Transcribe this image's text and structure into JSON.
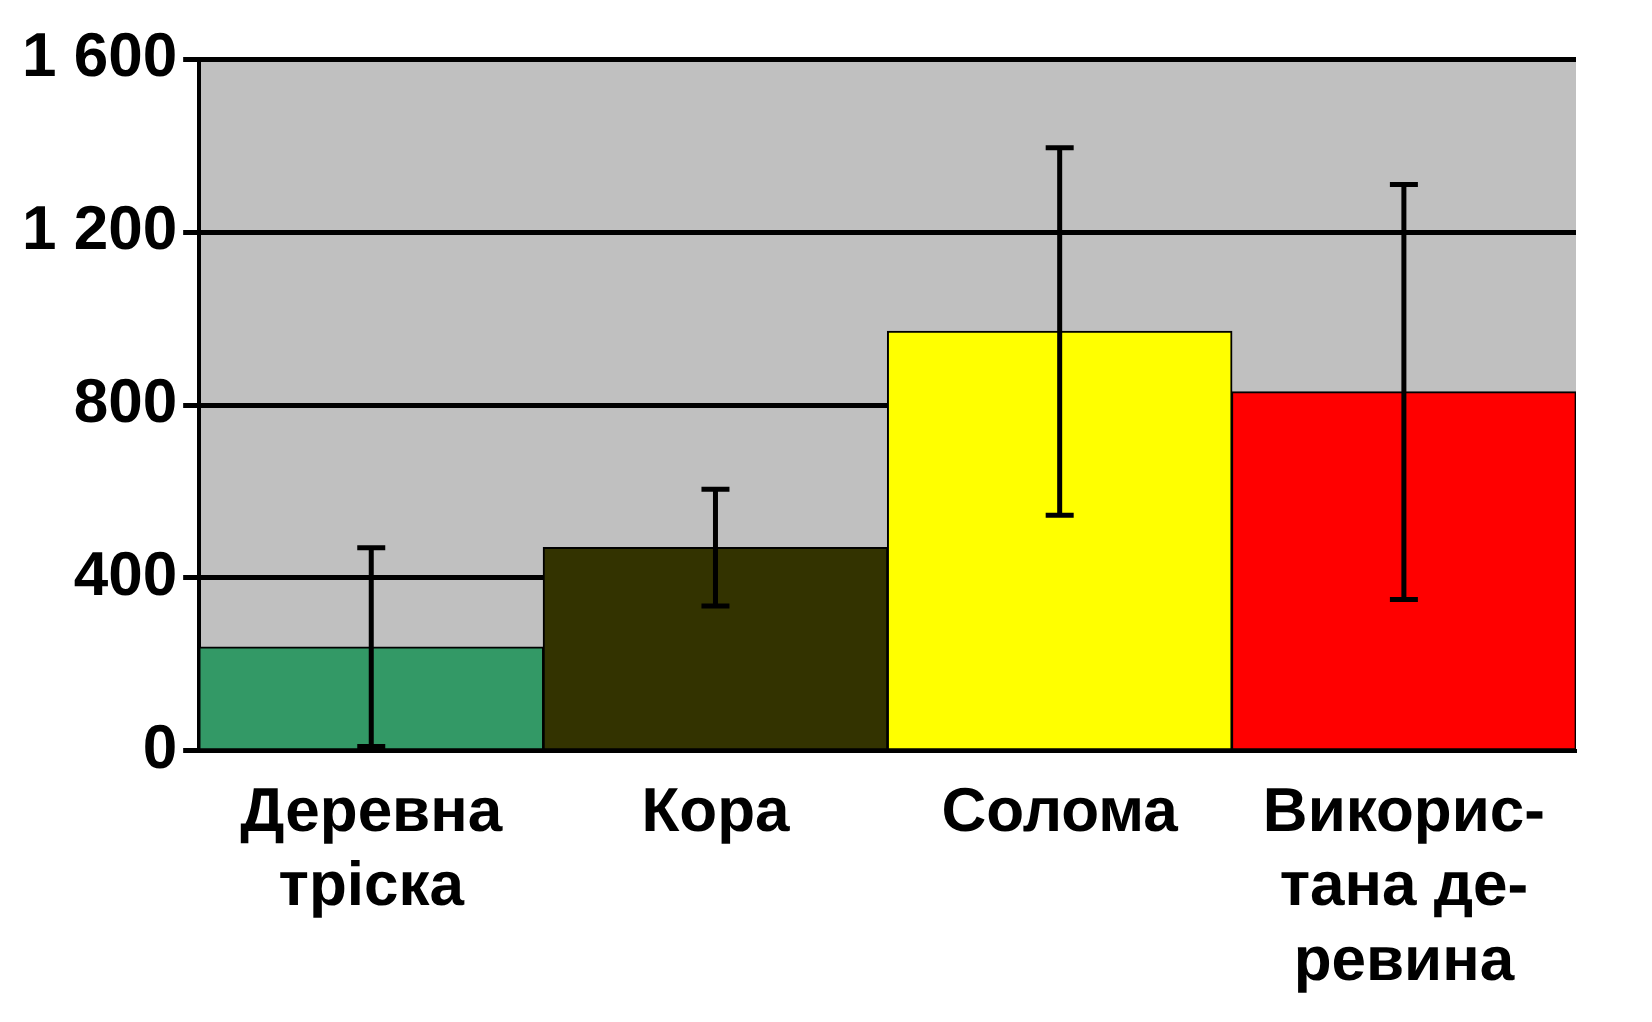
{
  "chart_data": {
    "type": "bar",
    "categories": [
      "Деревна\nтріска",
      "Кора",
      "Солома",
      "Викорис-\nтана де-\nревина"
    ],
    "values": [
      240,
      470,
      970,
      830
    ],
    "colors": [
      "#339966",
      "#333300",
      "#ffff00",
      "#ff0000"
    ],
    "errors": [
      230,
      135,
      425,
      480
    ],
    "ylim": [
      0,
      1600
    ],
    "yticks": [
      {
        "value": 0,
        "label": "0"
      },
      {
        "value": 400,
        "label": "400"
      },
      {
        "value": 800,
        "label": "800"
      },
      {
        "value": 1200,
        "label": "1 200"
      },
      {
        "value": 1600,
        "label": "1 600"
      }
    ],
    "grid": "y",
    "legend": false
  }
}
